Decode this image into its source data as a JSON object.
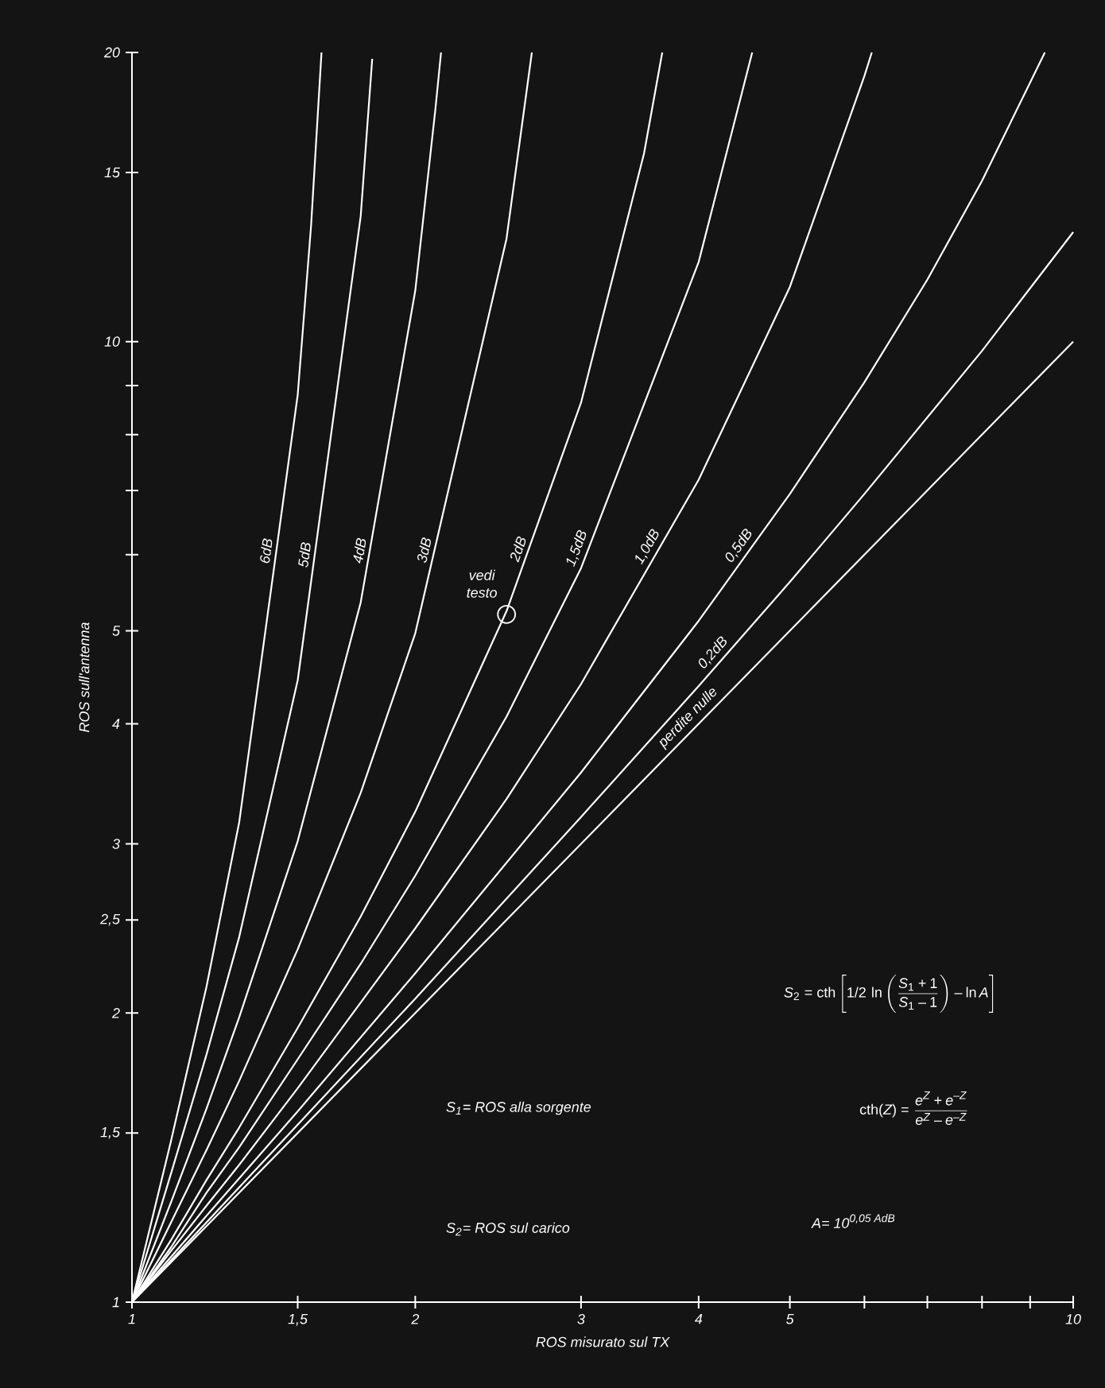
{
  "chart_data": {
    "type": "line",
    "xlabel": "ROS misurato sul TX",
    "ylabel": "ROS sull'antenna",
    "log": "xy",
    "xlim": [
      1,
      10
    ],
    "ylim": [
      1,
      20
    ],
    "xticks": [
      1,
      {
        "value": 1.5,
        "label": "1,5"
      },
      2,
      3,
      4,
      5,
      {
        "value": 6,
        "label": null
      },
      {
        "value": 7,
        "label": null
      },
      {
        "value": 8,
        "label": null
      },
      {
        "value": 9,
        "label": null
      },
      10
    ],
    "yticks": [
      1,
      {
        "value": 1.5,
        "label": "1,5"
      },
      2,
      {
        "value": 2.5,
        "label": "2,5"
      },
      3,
      4,
      5,
      {
        "value": 6,
        "label": null
      },
      {
        "value": 7,
        "label": null
      },
      {
        "value": 8,
        "label": null
      },
      {
        "value": 9,
        "label": null
      },
      10,
      15,
      20
    ],
    "series": [
      {
        "name": "6dB",
        "color": "#ffffff",
        "x": [
          1,
          1.1,
          1.2,
          1.3,
          1.5,
          1.55,
          1.59
        ],
        "values": [
          1,
          1.47,
          2.13,
          3.16,
          8.8,
          13.2,
          20
        ]
      },
      {
        "name": "5dB",
        "color": "#ffffff",
        "x": [
          1,
          1.1,
          1.2,
          1.3,
          1.5,
          1.75,
          1.8
        ],
        "values": [
          1,
          1.36,
          1.81,
          2.4,
          4.44,
          13.5,
          19.7
        ]
      },
      {
        "name": "4dB",
        "color": "#ffffff",
        "x": [
          1,
          1.1,
          1.2,
          1.3,
          1.5,
          1.75,
          2,
          2.1,
          2.13
        ],
        "values": [
          1,
          1.27,
          1.59,
          1.98,
          3.02,
          5.35,
          11.3,
          17.4,
          20
        ]
      },
      {
        "name": "3dB",
        "color": "#ffffff",
        "x": [
          1,
          1.1,
          1.2,
          1.3,
          1.5,
          1.75,
          2,
          2.5,
          2.66
        ],
        "values": [
          1,
          1.21,
          1.44,
          1.7,
          2.33,
          3.39,
          4.97,
          12.8,
          20
        ]
      },
      {
        "name": "2dB",
        "color": "#ffffff",
        "x": [
          1,
          1.1,
          1.2,
          1.3,
          1.5,
          1.75,
          2,
          2.5,
          3,
          3.5,
          3.66
        ],
        "values": [
          1,
          1.16,
          1.34,
          1.52,
          1.93,
          2.52,
          3.24,
          5.24,
          8.64,
          15.7,
          20
        ]
      },
      {
        "name": "1,5dB",
        "color": "#ffffff",
        "x": [
          1,
          1.1,
          1.2,
          1.3,
          1.5,
          1.75,
          2,
          2.5,
          3,
          4,
          4.56
        ],
        "values": [
          1,
          1.14,
          1.3,
          1.45,
          1.79,
          2.25,
          2.78,
          4.07,
          5.81,
          12.1,
          20
        ]
      },
      {
        "name": "1,0dB",
        "color": "#ffffff",
        "x": [
          1,
          1.1,
          1.2,
          1.3,
          1.5,
          2,
          2.5,
          3,
          4,
          5,
          6,
          6.11
        ],
        "values": [
          1,
          1.13,
          1.26,
          1.39,
          1.67,
          2.45,
          3.34,
          4.4,
          7.18,
          11.4,
          18.9,
          20
        ]
      },
      {
        "name": "0,5dB",
        "color": "#ffffff",
        "x": [
          1,
          1.2,
          1.5,
          2,
          3,
          4,
          5,
          6,
          7,
          8,
          9.33
        ],
        "values": [
          1,
          1.23,
          1.58,
          2.2,
          3.56,
          5.12,
          6.94,
          9.07,
          11.6,
          14.7,
          20
        ]
      },
      {
        "name": "0,2dB",
        "color": "#ffffff",
        "x": [
          1,
          1.5,
          2,
          3,
          4,
          5,
          6,
          8,
          10
        ],
        "values": [
          1,
          1.53,
          2.07,
          3.2,
          4.38,
          5.62,
          6.94,
          9.78,
          13
        ]
      },
      {
        "name": "perdite nulle",
        "color": "#ffffff",
        "x": [
          1,
          10
        ],
        "values": [
          1,
          10
        ]
      }
    ],
    "annotations": [
      {
        "text": "vedi testo",
        "x": 2.5,
        "y": 5.2
      },
      "S_2=\\mathrm{cth}\\left[1/2\\,\\ln\\left(\\frac{S_1+1}{S_1-1}\\right)-\\ln A\\right]",
      "S$_{1}$= ROS alla sorgente",
      "\\mathrm{cth}(Z)=\\frac{e^{Z}+e^{-Z}}{e^{Z}-e^{-Z}}",
      "S$_{2}$= ROS sul carico",
      "A= 10$^{0,05 AdB}$"
    ]
  }
}
